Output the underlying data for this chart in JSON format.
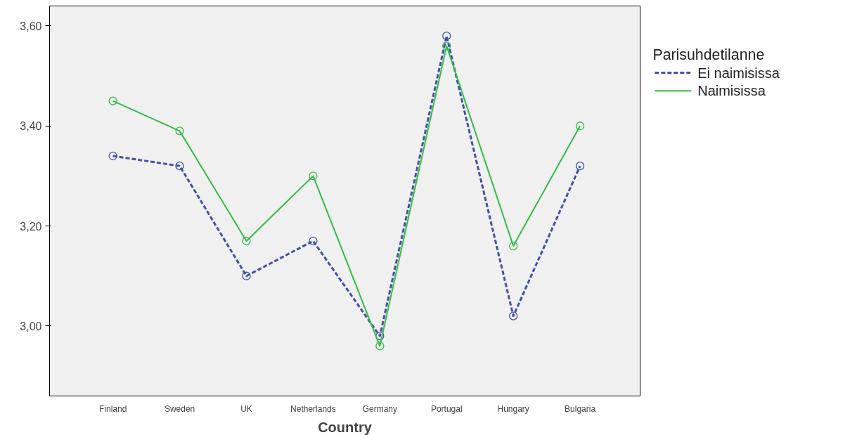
{
  "chart_data": {
    "type": "line",
    "xlabel": "Country",
    "legend_title": "Parisuhdetilanne",
    "legend": "right",
    "grid": false,
    "marker": "circle",
    "categories": [
      "Finland",
      "Sweden",
      "UK",
      "Netherlands",
      "Germany",
      "Portugal",
      "Hungary",
      "Bulgaria"
    ],
    "ylim": [
      2.86,
      3.64
    ],
    "yticks": [
      {
        "value": 3.0,
        "label": "3,00"
      },
      {
        "value": 3.2,
        "label": "3,20"
      },
      {
        "value": 3.4,
        "label": "3,40"
      },
      {
        "value": 3.6,
        "label": "3,60"
      }
    ],
    "series": [
      {
        "name": "Ei naimisissa",
        "color": "#3f51a8",
        "line_style": "dashed",
        "values": [
          3.34,
          3.32,
          3.1,
          3.17,
          2.98,
          3.58,
          3.02,
          3.32
        ]
      },
      {
        "name": "Naimisissa",
        "color": "#33bb44",
        "line_style": "solid",
        "values": [
          3.45,
          3.39,
          3.17,
          3.3,
          2.96,
          3.56,
          3.16,
          3.4
        ]
      }
    ]
  }
}
